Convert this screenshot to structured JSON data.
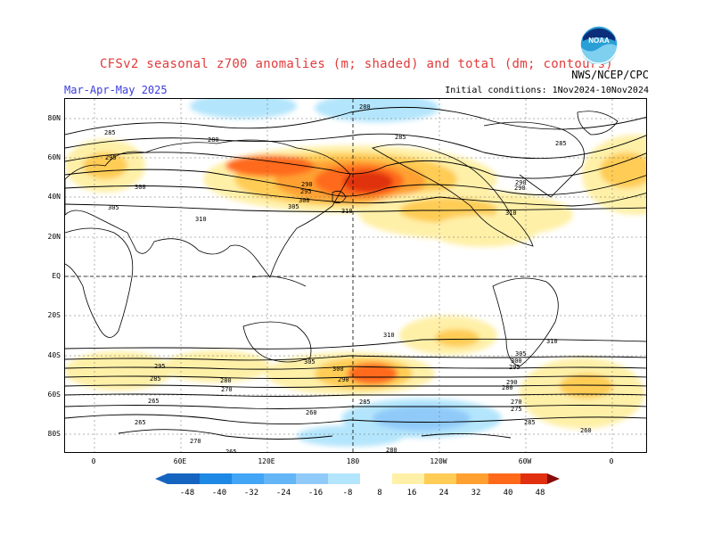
{
  "header": {
    "title": "CFSv2 seasonal z700 anomalies (m; shaded) and total (dm; contours)",
    "period": "Mar-Apr-May 2025",
    "agency": "NWS/NCEP/CPC",
    "initial_conditions": "Initial conditions: 1Nov2024-10Nov2024",
    "logo_text": "NOAA"
  },
  "axes": {
    "lat_labels": [
      "80N",
      "60N",
      "40N",
      "20N",
      "EQ",
      "20S",
      "40S",
      "60S",
      "80S"
    ],
    "lon_labels": [
      "0",
      "60E",
      "120E",
      "180",
      "120W",
      "60W",
      "0"
    ]
  },
  "contour_labels": [
    "280",
    "280",
    "285",
    "285",
    "285",
    "290",
    "290",
    "295",
    "300",
    "305",
    "310",
    "310",
    "310",
    "310",
    "305",
    "300",
    "295",
    "290",
    "285",
    "280",
    "270",
    "265",
    "260",
    "265",
    "270",
    "280",
    "285",
    "290",
    "295",
    "300",
    "305",
    "310",
    "305",
    "300",
    "295",
    "290",
    "285",
    "280",
    "275",
    "270",
    "265",
    "260"
  ],
  "colorbar": {
    "labels": [
      "-48",
      "-40",
      "-32",
      "-24",
      "-16",
      "-8",
      "8",
      "16",
      "24",
      "32",
      "40",
      "48"
    ],
    "colors": [
      "#1565c0",
      "#1e88e5",
      "#42a5f5",
      "#64b5f6",
      "#90caf9",
      "#b3e5fc",
      "#ffffff",
      "#fff0a8",
      "#ffcc55",
      "#ffa030",
      "#ff6a1a",
      "#e03010",
      "#b01808",
      "#8a0a0a"
    ]
  },
  "colors": {
    "title_red": "#e23b3b",
    "period_blue": "#3a3ae0",
    "positive_anomaly": "#ffa030",
    "negative_anomaly": "#90caf9"
  }
}
